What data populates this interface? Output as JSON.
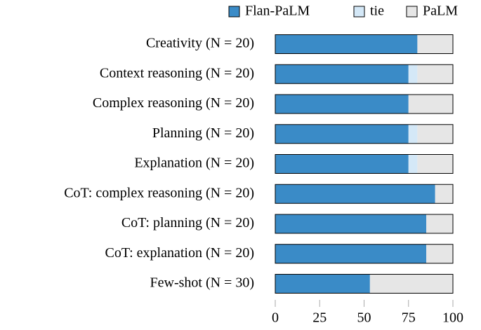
{
  "chart_data": {
    "type": "stacked-barh",
    "categories": [
      "Creativity (N = 20)",
      "Context reasoning (N = 20)",
      "Complex reasoning (N = 20)",
      "Planning (N = 20)",
      "Explanation (N = 20)",
      "CoT: complex reasoning (N = 20)",
      "CoT: planning (N = 20)",
      "CoT: explanation (N = 20)",
      "Few-shot (N = 30)"
    ],
    "series": [
      {
        "name": "Flan-PaLM",
        "color": "#3a8bc7",
        "values": [
          80,
          75,
          75,
          75,
          75,
          90,
          85,
          85,
          53.3
        ]
      },
      {
        "name": "tie",
        "color": "#d4e8f7",
        "values": [
          0,
          5,
          0,
          5,
          5,
          0,
          0,
          0,
          0
        ]
      },
      {
        "name": "PaLM",
        "color": "#e6e6e6",
        "values": [
          20,
          20,
          25,
          20,
          20,
          10,
          15,
          15,
          46.7
        ]
      }
    ],
    "xlim": [
      0,
      100
    ],
    "xticks": [
      0,
      25,
      50,
      75,
      100
    ],
    "legend": "top-right"
  }
}
